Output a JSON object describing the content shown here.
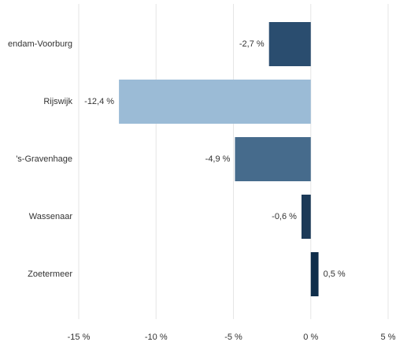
{
  "chart_data": {
    "type": "barh",
    "categories": [
      "endam-Voorburg",
      "Rijswijk",
      "'s-Gravenhage",
      "Wassenaar",
      "Zoetermeer"
    ],
    "values": [
      -2.7,
      -12.4,
      -4.9,
      -0.6,
      0.5
    ],
    "value_labels": [
      "-2,7 %",
      "-12,4 %",
      "-4,9 %",
      "-0,6 %",
      "0,5 %"
    ],
    "colors": [
      "#2a4d6f",
      "#9bbbd6",
      "#466b8c",
      "#1c3a58",
      "#0f2d4a"
    ],
    "xlim": [
      -15,
      5
    ],
    "xticks": [
      {
        "value": -15,
        "label": "-15 %"
      },
      {
        "value": -10,
        "label": "-10 %"
      },
      {
        "value": -5,
        "label": "-5 %"
      },
      {
        "value": 0,
        "label": "0 %"
      },
      {
        "value": 5,
        "label": "5 %"
      }
    ],
    "grid": true
  }
}
